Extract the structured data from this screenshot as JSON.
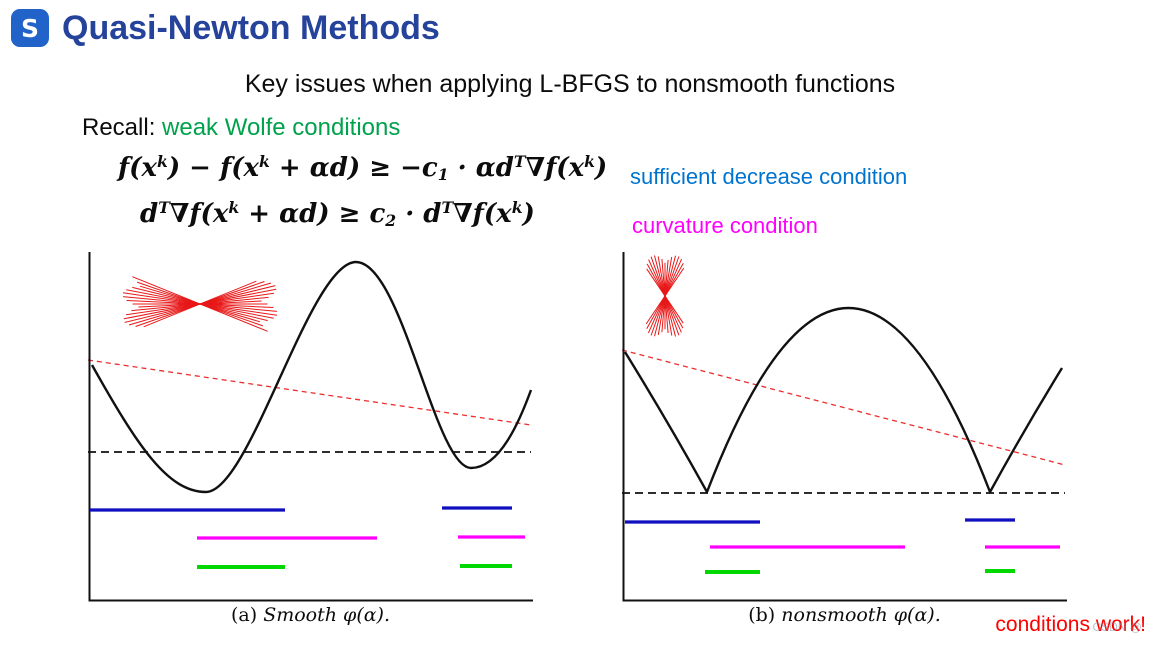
{
  "header": {
    "title": "Quasi-Newton Methods"
  },
  "subtitle": "Key issues when applying L-BFGS to nonsmooth functions",
  "recall": {
    "prefix": "Recall: ",
    "highlight": "weak Wolfe conditions"
  },
  "math": {
    "line1": {
      "tokens": [
        "f(x",
        "k",
        ") − f(x",
        "k",
        " + αd) ≥ −c",
        "1",
        " · αd",
        "T",
        "∇f(x",
        "k",
        ")"
      ],
      "label": "sufficient decrease condition"
    },
    "line2": {
      "tokens": [
        "d",
        "T",
        "∇f(x",
        "k",
        " + αd) ≥ c",
        "2",
        " · d",
        "T",
        "∇f(x",
        "k",
        ")"
      ],
      "label": "curvature condition"
    }
  },
  "figures": {
    "left": {
      "caption_label": "(a)",
      "caption_text": "Smooth φ(α)."
    },
    "right": {
      "caption_label": "(b)",
      "caption_text": "nonsmooth φ(α)."
    }
  },
  "footer": {
    "note": "conditions work!",
    "watermark": "CSDN @"
  },
  "colors": {
    "title_blue": "#26439b",
    "wolfe_green": "#00a24b",
    "sufficient_blue": "#0073cf",
    "curvature_magenta": "#ff00ff",
    "note_red": "#ff0000",
    "interval_blue": "#0f0fc0",
    "interval_magenta": "#ff00ff",
    "interval_green": "#00d800",
    "curve_black": "#111111",
    "ray_red": "#e81818",
    "logo_blue": "#2163c9"
  },
  "icons": {
    "logo": "stacked-s-logo-icon"
  }
}
